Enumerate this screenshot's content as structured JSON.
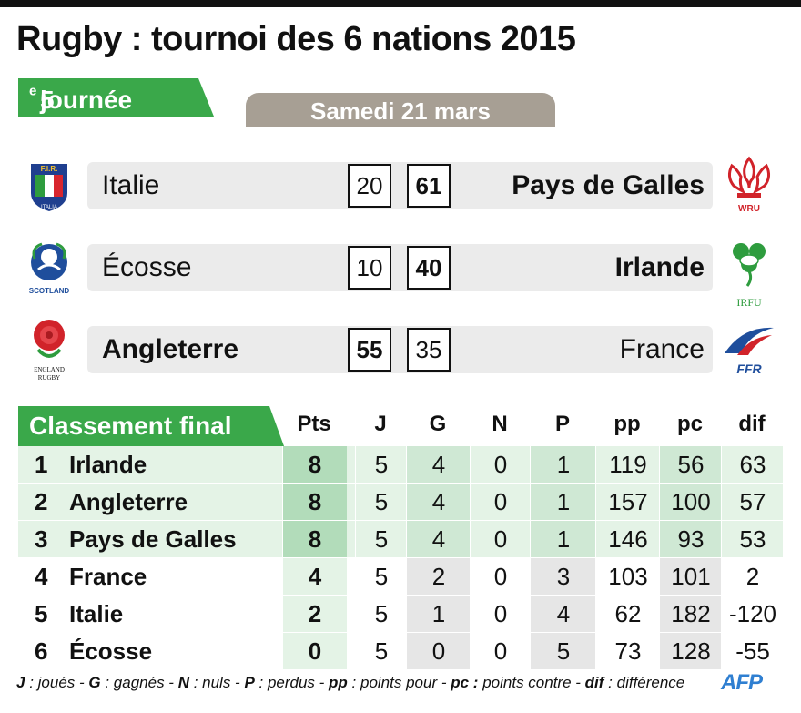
{
  "header": {
    "title": "Rugby : tournoi des 6 nations 2015",
    "round_number": "5",
    "round_sup": "e",
    "round_word": "journée",
    "date": "Samedi 21 mars"
  },
  "matches": [
    {
      "home": "Italie",
      "home_score": "20",
      "away_score": "61",
      "away": "Pays de Galles",
      "winner": "away",
      "home_logo": "fir-italy-logo",
      "away_logo": "wru-wales-logo",
      "home_logo_text": "F.I.R. ITALIA",
      "away_logo_text": "WRU"
    },
    {
      "home": "Écosse",
      "home_score": "10",
      "away_score": "40",
      "away": "Irlande",
      "winner": "away",
      "home_logo": "scotland-logo",
      "away_logo": "irfu-logo",
      "home_logo_text": "SCOTLAND",
      "away_logo_text": "IRFU"
    },
    {
      "home": "Angleterre",
      "home_score": "55",
      "away_score": "35",
      "away": "France",
      "winner": "home",
      "home_logo": "england-rugby-logo",
      "away_logo": "ffr-logo",
      "home_logo_text": "ENGLAND RUGBY",
      "away_logo_text": "FFR"
    }
  ],
  "standings": {
    "title": "Classement final",
    "columns": [
      "Pts",
      "J",
      "G",
      "N",
      "P",
      "pp",
      "pc",
      "dif"
    ],
    "rows": [
      {
        "rank": "1",
        "team": "Irlande",
        "cells": [
          "8",
          "5",
          "4",
          "0",
          "1",
          "119",
          "56",
          "63"
        ]
      },
      {
        "rank": "2",
        "team": "Angleterre",
        "cells": [
          "8",
          "5",
          "4",
          "0",
          "1",
          "157",
          "100",
          "57"
        ]
      },
      {
        "rank": "3",
        "team": "Pays de Galles",
        "cells": [
          "8",
          "5",
          "4",
          "0",
          "1",
          "146",
          "93",
          "53"
        ]
      },
      {
        "rank": "4",
        "team": "France",
        "cells": [
          "4",
          "5",
          "2",
          "0",
          "3",
          "103",
          "101",
          "2"
        ]
      },
      {
        "rank": "5",
        "team": "Italie",
        "cells": [
          "2",
          "5",
          "1",
          "0",
          "4",
          "62",
          "182",
          "-120"
        ]
      },
      {
        "rank": "6",
        "team": "Écosse",
        "cells": [
          "0",
          "5",
          "0",
          "0",
          "5",
          "73",
          "128",
          "-55"
        ]
      }
    ]
  },
  "legend": [
    {
      "abbr": "J",
      "sep": " : ",
      "text": "joués"
    },
    {
      "abbr": "G",
      "sep": " : ",
      "text": "gagnés"
    },
    {
      "abbr": "N",
      "sep": " : ",
      "text": "nuls"
    },
    {
      "abbr": "P",
      "sep": " : ",
      "text": "perdus"
    },
    {
      "abbr": "pp",
      "sep": " : ",
      "text": "points pour"
    },
    {
      "abbr": "pc :",
      "sep": " ",
      "text": "points contre"
    },
    {
      "abbr": "dif",
      "sep": " : ",
      "text": "différence"
    }
  ],
  "credit": "AFP",
  "colors": {
    "accent_green": "#3aa84a",
    "date_tab": "#a79f94",
    "row_top3": "#e4f3e6",
    "row_top3_pts": "#b2dcba",
    "row_shade_green": "#cfe8d4",
    "row_shade_grey": "#e6e6e6",
    "afp_blue": "#2f7fd1"
  }
}
